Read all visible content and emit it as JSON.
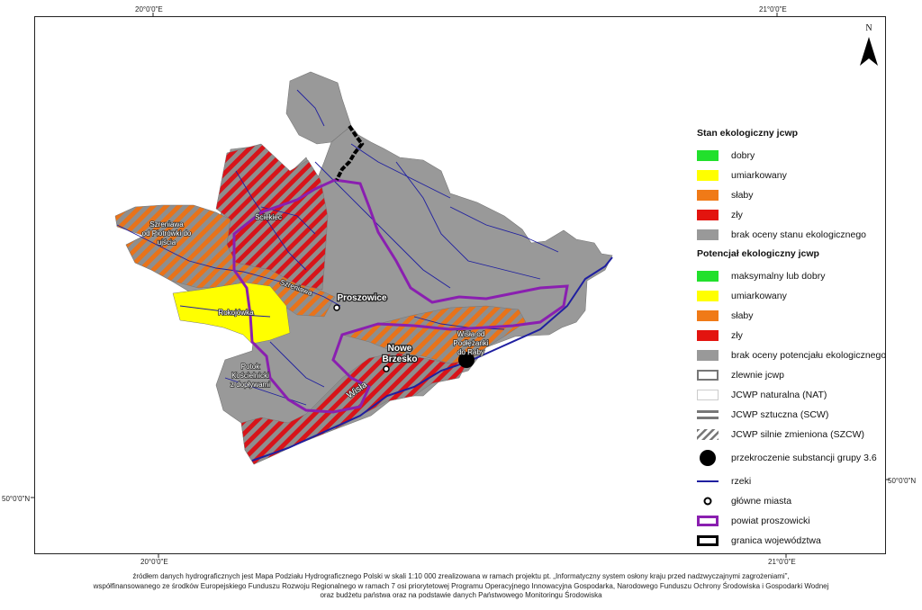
{
  "coords": {
    "top_left": "20°0'0\"E",
    "top_right": "21°0'0\"E",
    "bottom_left": "20°0'0\"E",
    "bottom_right": "21°0'0\"E",
    "left_lat": "50°0'0\"N",
    "right_lat": "50°0'0\"N"
  },
  "north_arrow": {
    "letter": "N"
  },
  "legend": {
    "heading_stan": "Stan ekologiczny jcwp",
    "stan_items": [
      {
        "label": "dobry",
        "color": "#22e02c"
      },
      {
        "label": "umiarkowany",
        "color": "#ffff00"
      },
      {
        "label": "słaby",
        "color": "#f07a17"
      },
      {
        "label": "zły",
        "color": "#e3140f"
      },
      {
        "label": "brak oceny stanu ekologicznego",
        "color": "#999999"
      }
    ],
    "heading_potencjal": "Potencjał ekologiczny jcwp",
    "potencjal_items": [
      {
        "label": "maksymalny lub dobry",
        "color": "#22e02c"
      },
      {
        "label": "umiarkowany",
        "color": "#ffff00"
      },
      {
        "label": "słaby",
        "color": "#f07a17"
      },
      {
        "label": "zły",
        "color": "#e3140f"
      },
      {
        "label": "brak oceny potencjału ekologicznego",
        "color": "#999999"
      }
    ],
    "other_items": {
      "zlewnie": "zlewnie jcwp",
      "nat": "JCWP naturalna (NAT)",
      "scw": "JCWP sztuczna (SCW)",
      "szcw": "JCWP silnie zmieniona (SZCW)",
      "substancje": "przekroczenie substancji grupy 3.6",
      "rzeki": "rzeki",
      "miasta": "główne miasta",
      "powiat": "powiat proszowicki",
      "granica": "granica województwa"
    },
    "colors": {
      "river": "#1f1fa0",
      "powiat": "#8a1fb0",
      "granica": "#000000"
    }
  },
  "map_labels": {
    "szreniawa_lower": [
      "Szreniawa",
      "od Piotrówki do",
      "ujścia"
    ],
    "sciekiec": "Ściekiec",
    "szreniawa_river": "Szreniawa",
    "proszowice": "Proszowice",
    "rokojowka": "Rokojówka",
    "potok_koscielnicki": [
      "Potok",
      "Kościelnicki",
      "z dopływami"
    ],
    "nowe_brzesko": [
      "Nowe",
      "Brzesko"
    ],
    "wisla_od": [
      "Wisła od",
      "Podłężanki",
      "do Raby"
    ],
    "wisla_river": "Wisła"
  },
  "footer": {
    "line1": "źródłem danych hydrograficznych jest Mapa Podziału Hydrograficznego Polski w skali 1:10 000 zrealizowana w ramach projektu pt. „Informatyczny system osłony kraju przed nadzwyczajnymi zagrożeniami”,",
    "line2": "współfinansowanego ze środków Europejskiego Funduszu Rozwoju Regionalnego w ramach 7 osi priorytetowej Programu Operacyjnego Innowacyjna Gospodarka, Narodowego Funduszu Ochrony Środowiska i Gospodarki Wodnej",
    "line3": "oraz budżetu państwa oraz na podstawie danych Państwowego Monitoringu Środowiska"
  }
}
